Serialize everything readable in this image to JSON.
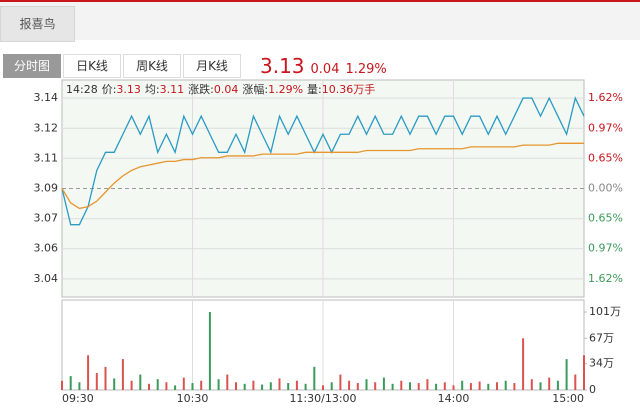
{
  "header": {
    "tab": "报喜鸟"
  },
  "tabs": [
    "分时图",
    "日K线",
    "周K线",
    "月K线"
  ],
  "quote": {
    "price": "3.13",
    "change": "0.04",
    "pct": "1.29%"
  },
  "chart_data": {
    "type": "line",
    "info": {
      "time": "14:28",
      "items": [
        {
          "label": "价:",
          "value": "3.13"
        },
        {
          "label": "均:",
          "value": "3.11"
        },
        {
          "label": "涨跌:",
          "value": "0.04"
        },
        {
          "label": "涨幅:",
          "value": "1.29%"
        },
        {
          "label": "量:",
          "value": "10.36万手"
        }
      ]
    },
    "x": [
      0,
      4,
      8,
      12,
      16,
      20,
      24,
      28,
      32,
      36,
      40,
      44,
      48,
      52,
      56,
      60,
      64,
      68,
      72,
      76,
      80,
      84,
      88,
      92,
      96,
      100,
      104,
      108,
      112,
      116,
      120,
      124,
      128,
      132,
      136,
      140,
      144,
      148,
      152,
      156,
      160,
      164,
      168,
      172,
      176,
      180,
      184,
      188,
      192,
      196,
      200,
      204,
      208,
      212,
      216,
      220,
      224,
      228,
      232,
      236,
      240
    ],
    "xlim": [
      0,
      240
    ],
    "xticks": [
      {
        "value": 0,
        "label": "09:30"
      },
      {
        "value": 60,
        "label": "10:30"
      },
      {
        "value": 120,
        "label": "11:30/13:00"
      },
      {
        "value": 180,
        "label": "14:00"
      },
      {
        "value": 240,
        "label": "15:00"
      }
    ],
    "ylim": [
      3.03,
      3.15
    ],
    "yticks": [
      3.14,
      {
        "value": 3.1233,
        "label": "3.12"
      },
      {
        "value": 3.1067,
        "label": "3.11"
      },
      3.09,
      {
        "value": 3.0733,
        "label": "3.07"
      },
      {
        "value": 3.0567,
        "label": "3.06"
      },
      3.04
    ],
    "y2ticks": [
      {
        "value": 1.62,
        "label": "1.62%"
      },
      {
        "value": 0.97,
        "label": "0.97%"
      },
      {
        "value": 0.65,
        "label": "0.65%"
      },
      {
        "value": 0,
        "label": "0.00%"
      },
      {
        "value": -0.65,
        "label": "0.65%"
      },
      {
        "value": -0.97,
        "label": "0.97%"
      },
      {
        "value": -1.62,
        "label": "1.62%"
      }
    ],
    "base": 3.09,
    "series": [
      {
        "color": "#2b9bc4",
        "values": [
          3.09,
          3.07,
          3.07,
          3.08,
          3.1,
          3.11,
          3.11,
          3.12,
          3.13,
          3.12,
          3.13,
          3.11,
          3.12,
          3.11,
          3.13,
          3.12,
          3.13,
          3.12,
          3.11,
          3.11,
          3.12,
          3.11,
          3.13,
          3.12,
          3.11,
          3.13,
          3.12,
          3.13,
          3.12,
          3.11,
          3.12,
          3.11,
          3.12,
          3.12,
          3.13,
          3.12,
          3.13,
          3.12,
          3.12,
          3.13,
          3.12,
          3.13,
          3.13,
          3.12,
          3.13,
          3.13,
          3.12,
          3.13,
          3.13,
          3.12,
          3.13,
          3.12,
          3.13,
          3.14,
          3.14,
          3.13,
          3.14,
          3.13,
          3.12,
          3.14,
          3.13
        ]
      },
      {
        "color": "#e8952e",
        "values": [
          3.09,
          3.082,
          3.079,
          3.08,
          3.083,
          3.088,
          3.093,
          3.097,
          3.1,
          3.102,
          3.103,
          3.104,
          3.105,
          3.105,
          3.106,
          3.106,
          3.107,
          3.107,
          3.107,
          3.108,
          3.108,
          3.108,
          3.108,
          3.109,
          3.109,
          3.109,
          3.109,
          3.109,
          3.11,
          3.11,
          3.11,
          3.11,
          3.11,
          3.11,
          3.11,
          3.111,
          3.111,
          3.111,
          3.111,
          3.111,
          3.111,
          3.112,
          3.112,
          3.112,
          3.112,
          3.112,
          3.112,
          3.113,
          3.113,
          3.113,
          3.113,
          3.113,
          3.113,
          3.114,
          3.114,
          3.114,
          3.114,
          3.115,
          3.115,
          3.115,
          3.115
        ]
      }
    ],
    "volume": {
      "ylim": [
        0,
        101
      ],
      "yticks": [
        {
          "value": 101,
          "label": "101万"
        },
        {
          "value": 67,
          "label": "67万"
        },
        {
          "value": 34,
          "label": "34万"
        },
        0
      ],
      "up_color": "#d9534f",
      "down_color": "#3a9a5a",
      "values": [
        12,
        18,
        10,
        45,
        22,
        30,
        15,
        40,
        12,
        20,
        8,
        14,
        10,
        6,
        16,
        9,
        12,
        101,
        14,
        20,
        10,
        8,
        12,
        7,
        10,
        15,
        9,
        12,
        8,
        30,
        6,
        10,
        20,
        12,
        9,
        14,
        10,
        16,
        8,
        12,
        10,
        9,
        14,
        8,
        10,
        6,
        12,
        9,
        11,
        8,
        10,
        12,
        9,
        67,
        14,
        10,
        16,
        12,
        40,
        20,
        45
      ],
      "up": [
        true,
        false,
        false,
        true,
        true,
        true,
        false,
        true,
        true,
        false,
        true,
        false,
        true,
        false,
        true,
        false,
        true,
        false,
        false,
        true,
        true,
        false,
        true,
        false,
        false,
        true,
        false,
        true,
        false,
        false,
        true,
        false,
        true,
        true,
        true,
        false,
        true,
        false,
        false,
        true,
        false,
        true,
        true,
        false,
        true,
        true,
        false,
        true,
        true,
        false,
        true,
        false,
        true,
        true,
        true,
        false,
        true,
        false,
        false,
        true,
        true
      ]
    }
  }
}
